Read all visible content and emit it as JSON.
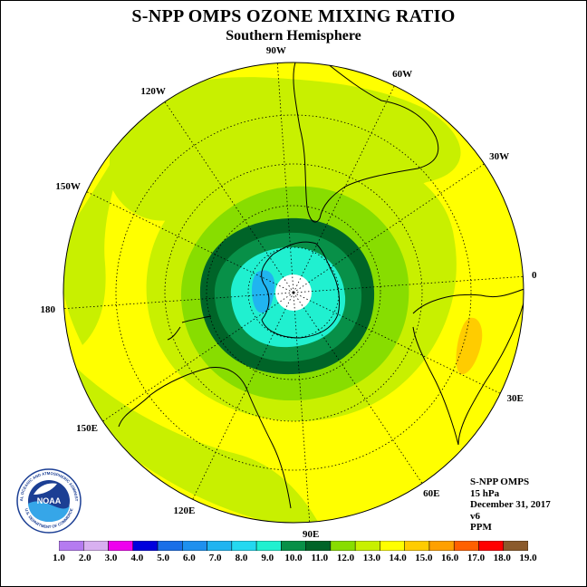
{
  "title": "S-NPP OMPS OZONE MIXING RATIO",
  "subtitle": "Southern Hemisphere",
  "longitude_labels": [
    {
      "text": "90W",
      "lon": -90
    },
    {
      "text": "60W",
      "lon": -60
    },
    {
      "text": "120W",
      "lon": -120
    },
    {
      "text": "30W",
      "lon": -30
    },
    {
      "text": "150W",
      "lon": -150
    },
    {
      "text": "0",
      "lon": 0
    },
    {
      "text": "180",
      "lon": 180
    },
    {
      "text": "30E",
      "lon": 30
    },
    {
      "text": "150E",
      "lon": 150
    },
    {
      "text": "60E",
      "lon": 60
    },
    {
      "text": "120E",
      "lon": 120
    },
    {
      "text": "90E",
      "lon": 90
    }
  ],
  "info": {
    "instrument": "S-NPP OMPS",
    "level": "15 hPa",
    "date": "December 31, 2017",
    "version": "v6",
    "units": "PPM"
  },
  "logo": {
    "text": "NOAA",
    "ring_text": "NATIONAL OCEANIC AND ATMOSPHERIC ADMINISTRATION",
    "ring_text_bottom": "U.S. DEPARTMENT OF COMMERCE"
  },
  "colorbar": {
    "ticks": [
      "1.0",
      "2.0",
      "3.0",
      "4.0",
      "5.0",
      "6.0",
      "7.0",
      "8.0",
      "9.0",
      "10.0",
      "11.0",
      "12.0",
      "13.0",
      "14.0",
      "15.0",
      "16.0",
      "17.0",
      "18.0",
      "19.0"
    ],
    "colors": [
      "#b57bf0",
      "#d8b0f0",
      "#ee00ee",
      "#0000dd",
      "#1a6fe8",
      "#1e90ee",
      "#20b4f0",
      "#24d8f0",
      "#20f0d0",
      "#089048",
      "#006428",
      "#88dd00",
      "#c8f000",
      "#ffff00",
      "#ffcc00",
      "#ffa000",
      "#ff6000",
      "#ff0000",
      "#8b5a2b"
    ]
  },
  "map_data": {
    "projection": "south polar stereographic",
    "parameter": "ozone mixing ratio",
    "level_hPa": 15,
    "units": "PPM",
    "pattern": "minimum (~8-10 ppm) over Antarctica surrounded by a band of 10-11 ppm, rising to 13-14 ppm at mid latitudes; a small 14-15 ppm maximum east of southern Africa"
  }
}
